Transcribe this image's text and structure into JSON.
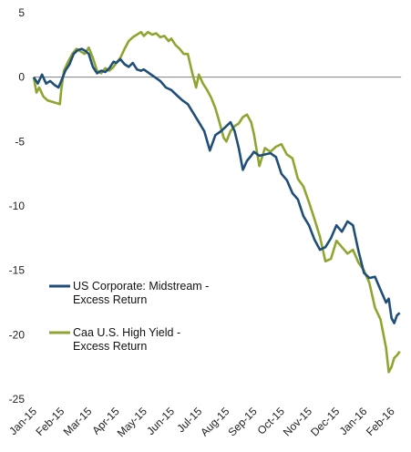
{
  "chart_data": {
    "type": "line",
    "title": "",
    "xlabel": "",
    "ylabel": "",
    "ylim": [
      -25,
      5
    ],
    "yticks": [
      5,
      0,
      -5,
      -10,
      -15,
      -20,
      -25
    ],
    "xticks": [
      "Jan-15",
      "Feb-15",
      "Mar-15",
      "Apr-15",
      "May-15",
      "Jun-15",
      "Jul-15",
      "Aug-15",
      "Sep-15",
      "Oct-15",
      "Nov-15",
      "Dec-15",
      "Jan-16",
      "Feb-16"
    ],
    "grid": false,
    "legend_position": "bottom-left",
    "series": [
      {
        "name_lines": [
          "US Corporate: Midstream -",
          "Excess Return"
        ],
        "color": "#1f4e79",
        "x": [
          0,
          0.15,
          0.3,
          0.45,
          0.6,
          0.75,
          0.9,
          1.0,
          1.15,
          1.3,
          1.45,
          1.6,
          1.75,
          1.9,
          2.0,
          2.15,
          2.3,
          2.45,
          2.6,
          2.75,
          2.9,
          3.0,
          3.15,
          3.3,
          3.45,
          3.6,
          3.75,
          3.9,
          4.0,
          4.2,
          4.4,
          4.6,
          4.8,
          5.0,
          5.2,
          5.4,
          5.6,
          5.8,
          6.0,
          6.2,
          6.4,
          6.6,
          6.8,
          7.0,
          7.15,
          7.3,
          7.45,
          7.6,
          7.75,
          7.9,
          8.0,
          8.2,
          8.4,
          8.6,
          8.8,
          9.0,
          9.2,
          9.4,
          9.6,
          9.8,
          10.0,
          10.2,
          10.4,
          10.6,
          10.8,
          11.0,
          11.2,
          11.4,
          11.6,
          11.8,
          12.0,
          12.2,
          12.4,
          12.6,
          12.8,
          12.9,
          13.0,
          13.1,
          13.2,
          13.3
        ],
        "y": [
          0,
          -0.5,
          0.2,
          -0.5,
          -0.3,
          -0.6,
          -0.8,
          -0.3,
          0.5,
          1.0,
          1.8,
          2.1,
          2.2,
          2.0,
          1.8,
          0.8,
          0.3,
          0.5,
          0.4,
          0.7,
          1.2,
          1.1,
          1.4,
          1.0,
          0.8,
          1.1,
          0.6,
          0.5,
          0.6,
          0.3,
          0.0,
          -0.3,
          -0.8,
          -1.0,
          -1.4,
          -1.8,
          -2.1,
          -2.8,
          -3.5,
          -4.2,
          -5.7,
          -4.5,
          -4.2,
          -3.8,
          -3.5,
          -4.2,
          -5.5,
          -7.2,
          -6.5,
          -6.1,
          -5.8,
          -6.1,
          -6.0,
          -5.9,
          -6.2,
          -7.5,
          -8.0,
          -9.0,
          -9.5,
          -10.8,
          -11.5,
          -12.6,
          -13.4,
          -13.2,
          -12.5,
          -11.5,
          -12.0,
          -11.2,
          -11.5,
          -13.5,
          -15.2,
          -15.6,
          -15.5,
          -16.5,
          -17.5,
          -17.2,
          -18.7,
          -19.1,
          -18.5,
          -18.3
        ]
      },
      {
        "name_lines": [
          "Caa U.S. High Yield -",
          "Excess Return"
        ],
        "color": "#8ea630",
        "x": [
          0,
          0.1,
          0.2,
          0.35,
          0.5,
          0.65,
          0.8,
          0.95,
          1.0,
          1.1,
          1.25,
          1.4,
          1.55,
          1.7,
          1.85,
          2.0,
          2.15,
          2.3,
          2.45,
          2.6,
          2.75,
          2.9,
          3.0,
          3.15,
          3.3,
          3.45,
          3.6,
          3.75,
          3.9,
          4.0,
          4.15,
          4.3,
          4.45,
          4.6,
          4.75,
          4.9,
          5.0,
          5.15,
          5.3,
          5.45,
          5.6,
          5.75,
          5.9,
          6.0,
          6.15,
          6.3,
          6.45,
          6.6,
          6.75,
          6.9,
          7.0,
          7.15,
          7.3,
          7.45,
          7.6,
          7.75,
          7.9,
          8.0,
          8.2,
          8.4,
          8.6,
          8.8,
          9.0,
          9.2,
          9.4,
          9.6,
          9.8,
          10.0,
          10.2,
          10.4,
          10.6,
          10.8,
          11.0,
          11.2,
          11.4,
          11.6,
          11.8,
          12.0,
          12.2,
          12.4,
          12.6,
          12.8,
          12.9,
          13.0,
          13.1,
          13.2,
          13.3
        ],
        "y": [
          0,
          -1.2,
          -0.8,
          -1.5,
          -1.8,
          -1.9,
          -2.0,
          -2.1,
          -1.0,
          0.5,
          1.2,
          1.8,
          2.2,
          2.0,
          1.8,
          2.3,
          1.5,
          0.5,
          0.3,
          0.7,
          0.5,
          0.8,
          1.1,
          1.5,
          2.2,
          2.8,
          3.1,
          3.3,
          3.5,
          3.2,
          3.5,
          3.3,
          3.4,
          3.1,
          3.2,
          2.8,
          3.0,
          2.5,
          2.2,
          1.8,
          1.8,
          0.4,
          -0.8,
          0.2,
          -0.5,
          -1.0,
          -1.6,
          -2.4,
          -3.5,
          -4.7,
          -5.0,
          -4.2,
          -3.8,
          -3.6,
          -3.1,
          -2.9,
          -3.5,
          -4.4,
          -6.9,
          -5.5,
          -5.8,
          -5.4,
          -5.2,
          -6.0,
          -6.3,
          -7.9,
          -8.5,
          -9.7,
          -11.0,
          -12.4,
          -14.3,
          -14.1,
          -12.7,
          -13.2,
          -13.7,
          -13.4,
          -14.4,
          -15.0,
          -16.0,
          -17.9,
          -18.8,
          -21.0,
          -22.9,
          -22.5,
          -21.8,
          -21.6,
          -21.3
        ]
      }
    ]
  }
}
